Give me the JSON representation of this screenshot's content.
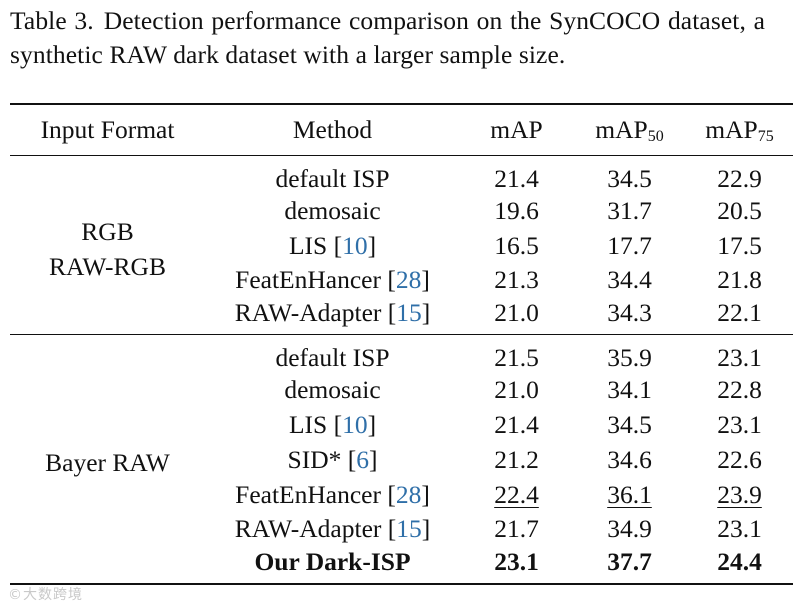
{
  "caption": {
    "label": "Table 3.",
    "text": "Detection performance comparison on the SynCOCO dataset, a synthetic RAW dark dataset with a larger sample size."
  },
  "table": {
    "headers": {
      "input_format": "Input Format",
      "method": "Method",
      "map": "mAP",
      "map50_base": "mAP",
      "map50_sub": "50",
      "map75_base": "mAP",
      "map75_sub": "75"
    },
    "groups": [
      {
        "input_lines": [
          "RGB",
          "RAW-RGB"
        ],
        "rows": [
          {
            "method": "default ISP",
            "cite": "",
            "map": "21.4",
            "map50": "34.5",
            "map75": "22.9"
          },
          {
            "method": "demosaic",
            "cite": "",
            "map": "19.6",
            "map50": "31.7",
            "map75": "20.5"
          },
          {
            "method": "LIS",
            "cite": "10",
            "map": "16.5",
            "map50": "17.7",
            "map75": "17.5"
          },
          {
            "method": "FeatEnHancer",
            "cite": "28",
            "map": "21.3",
            "map50": "34.4",
            "map75": "21.8"
          },
          {
            "method": "RAW-Adapter",
            "cite": "15",
            "map": "21.0",
            "map50": "34.3",
            "map75": "22.1"
          }
        ]
      },
      {
        "input_lines": [
          "Bayer RAW"
        ],
        "rows": [
          {
            "method": "default ISP",
            "cite": "",
            "map": "21.5",
            "map50": "35.9",
            "map75": "23.1"
          },
          {
            "method": "demosaic",
            "cite": "",
            "map": "21.0",
            "map50": "34.1",
            "map75": "22.8"
          },
          {
            "method": "LIS",
            "cite": "10",
            "map": "21.4",
            "map50": "34.5",
            "map75": "23.1"
          },
          {
            "method": "SID*",
            "cite": "6",
            "map": "21.2",
            "map50": "34.6",
            "map75": "22.6"
          },
          {
            "method": "FeatEnHancer",
            "cite": "28",
            "map": "22.4",
            "map50": "36.1",
            "map75": "23.9",
            "style": "underline"
          },
          {
            "method": "RAW-Adapter",
            "cite": "15",
            "map": "21.7",
            "map50": "34.9",
            "map75": "23.1"
          },
          {
            "method": "Our Dark-ISP",
            "cite": "",
            "map": "23.1",
            "map50": "37.7",
            "map75": "24.4",
            "style": "bold"
          }
        ]
      }
    ]
  },
  "colors": {
    "citation": "#2f6fa8",
    "text": "#111111"
  },
  "watermark": "©大数跨境"
}
